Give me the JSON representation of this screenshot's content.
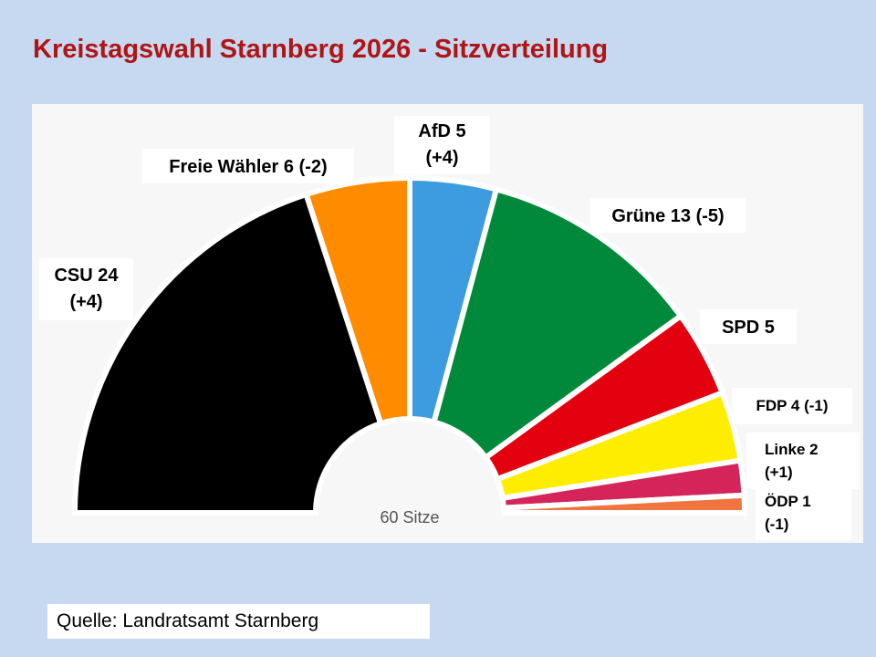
{
  "title": "Kreistagswahl Starnberg 2026 - Sitzverteilung",
  "source": "Quelle: Landratsamt Starnberg",
  "chart_data": {
    "type": "pie",
    "variant": "parliament-half-donut",
    "center_label": "60 Sitze",
    "total_seats": 60,
    "series": [
      {
        "name": "CSU",
        "value": 24,
        "change": "+4",
        "color": "#000000",
        "label_lines": [
          "CSU 24",
          "(+4)"
        ]
      },
      {
        "name": "Freie Wähler",
        "value": 6,
        "change": "-2",
        "color": "#ff8c00",
        "label_lines": [
          "Freie Wähler 6 (-2)"
        ]
      },
      {
        "name": "AfD",
        "value": 5,
        "change": "+4",
        "color": "#3d9be0",
        "label_lines": [
          "AfD  5",
          "(+4)"
        ]
      },
      {
        "name": "Grüne",
        "value": 13,
        "change": "-5",
        "color": "#00893a",
        "label_lines": [
          "Grüne 13 (-5)"
        ]
      },
      {
        "name": "SPD",
        "value": 5,
        "change": "",
        "color": "#e3000f",
        "label_lines": [
          "SPD  5"
        ]
      },
      {
        "name": "FDP",
        "value": 4,
        "change": "-1",
        "color": "#ffed00",
        "label_lines": [
          "FDP 4 (-1)"
        ]
      },
      {
        "name": "Linke",
        "value": 2,
        "change": "+1",
        "color": "#d4245a",
        "label_lines": [
          "Linke 2",
          "(+1)"
        ]
      },
      {
        "name": "ÖDP",
        "value": 1,
        "change": "-1",
        "color": "#f07440",
        "label_lines": [
          "ÖDP 1",
          "(-1)"
        ]
      }
    ]
  }
}
